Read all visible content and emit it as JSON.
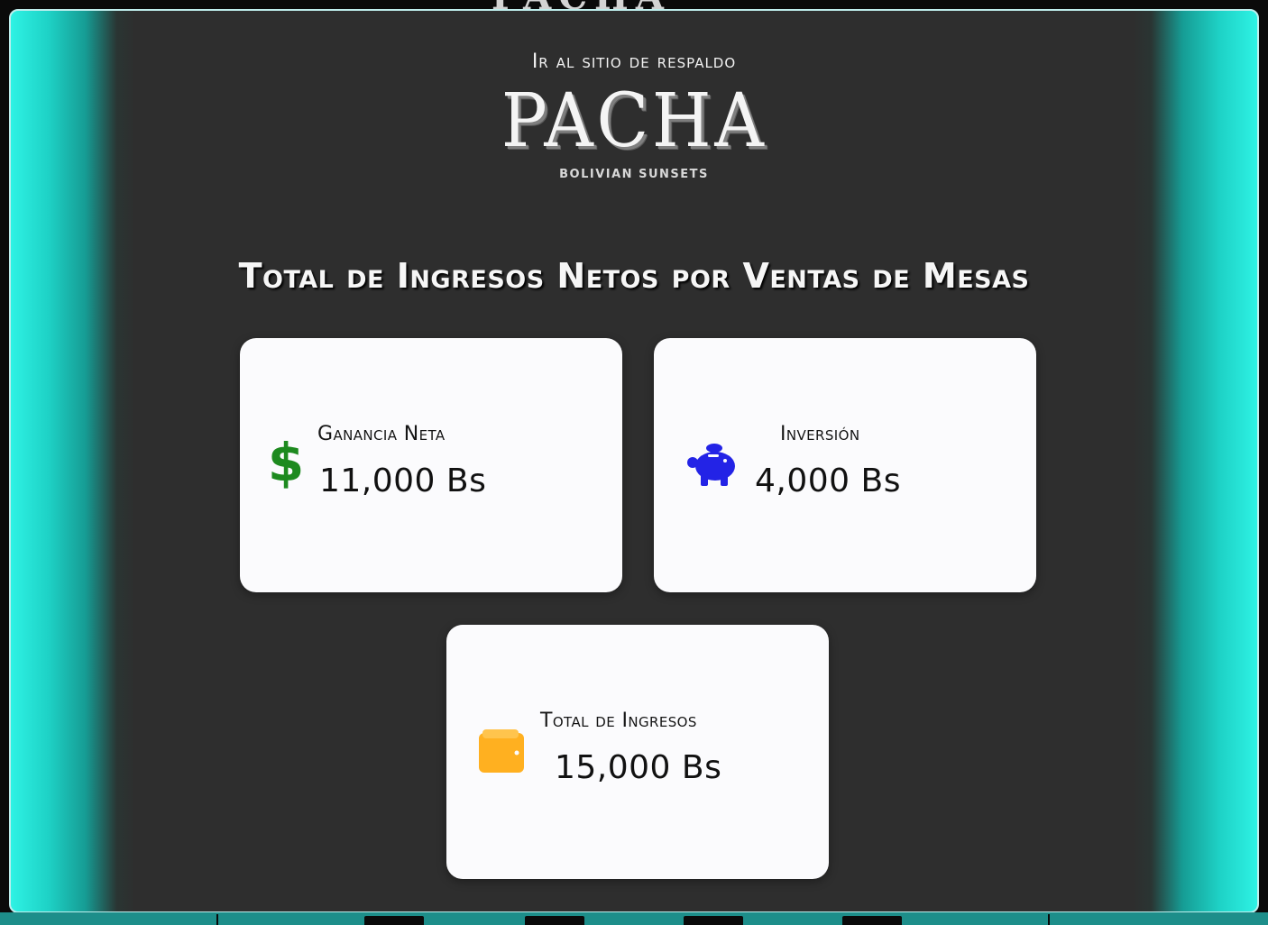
{
  "header": {
    "backup_link": "Ir al sitio de respaldo",
    "logo_name": "PACHA",
    "logo_tagline": "BOLIVIAN SUNSETS"
  },
  "main": {
    "title": "Total de Ingresos Netos por Ventas de Mesas",
    "cards": [
      {
        "label": "Ganancia Neta",
        "value": "11,000 Bs",
        "icon": "dollar-icon",
        "color": "#1d8a1f"
      },
      {
        "label": "Inversión",
        "value": "4,000 Bs",
        "icon": "piggy-bank-icon",
        "color": "#2323e6"
      },
      {
        "label": "Total de Ingresos",
        "value": "15,000 Bs",
        "icon": "wallet-icon",
        "color": "#ffb020"
      }
    ]
  },
  "colors": {
    "accent": "#2ef2e4",
    "panel": "#2e2e2e",
    "card": "#fbfbfd"
  }
}
